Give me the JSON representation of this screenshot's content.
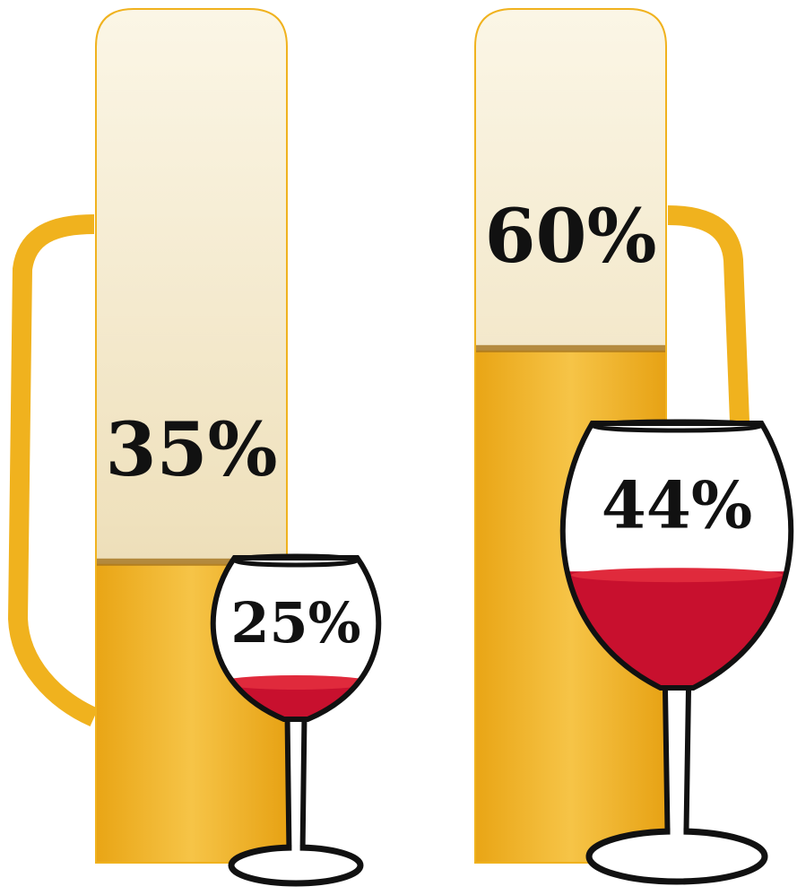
{
  "chart_data": {
    "type": "pictogram",
    "series": [
      {
        "color": "#f0ad1c",
        "values": [
          35,
          60
        ],
        "value_labels": [
          "35%",
          "60%"
        ]
      },
      {
        "color": "#c8102e",
        "values": [
          25,
          44
        ],
        "value_labels": [
          "25%",
          "44%"
        ]
      }
    ]
  }
}
